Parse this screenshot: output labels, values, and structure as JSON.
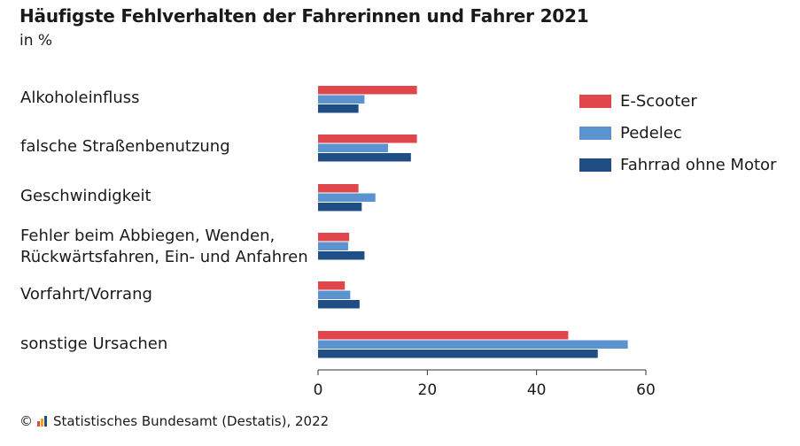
{
  "title": "Häufigste Fehlverhalten der Fahrerinnen und Fahrer 2021",
  "subtitle": "in %",
  "footer": {
    "copyright": "©",
    "text": "Statistisches Bundesamt (Destatis), 2022",
    "logo_colors": [
      "#e0474c",
      "#f0a500",
      "#1f4e79"
    ]
  },
  "chart_data": {
    "type": "bar",
    "orientation": "horizontal",
    "categories": [
      [
        "Alkoholeinfluss"
      ],
      [
        "falsche Straßenbenutzung"
      ],
      [
        "Geschwindigkeit"
      ],
      [
        "Fehler beim Abbiegen, Wenden,",
        "Rückwärtsfahren, Ein- und Anfahren"
      ],
      [
        "Vorfahrt/Vorrang"
      ],
      [
        "sonstige Ursachen"
      ]
    ],
    "series": [
      {
        "name": "E-Scooter",
        "color": "#e0474c",
        "values": [
          18.1,
          18.1,
          7.4,
          5.7,
          4.9,
          45.8
        ]
      },
      {
        "name": "Pedelec",
        "color": "#5b93cf",
        "values": [
          8.5,
          12.8,
          10.5,
          5.5,
          5.9,
          56.7
        ]
      },
      {
        "name": "Fahrrad ohne Motor",
        "color": "#1f4e85",
        "values": [
          7.4,
          17.0,
          8.0,
          8.5,
          7.6,
          51.2
        ]
      }
    ],
    "xlim": [
      0,
      60
    ],
    "xticks": [
      0,
      20,
      40,
      60
    ],
    "legend_position": "top-right",
    "grid": false
  }
}
